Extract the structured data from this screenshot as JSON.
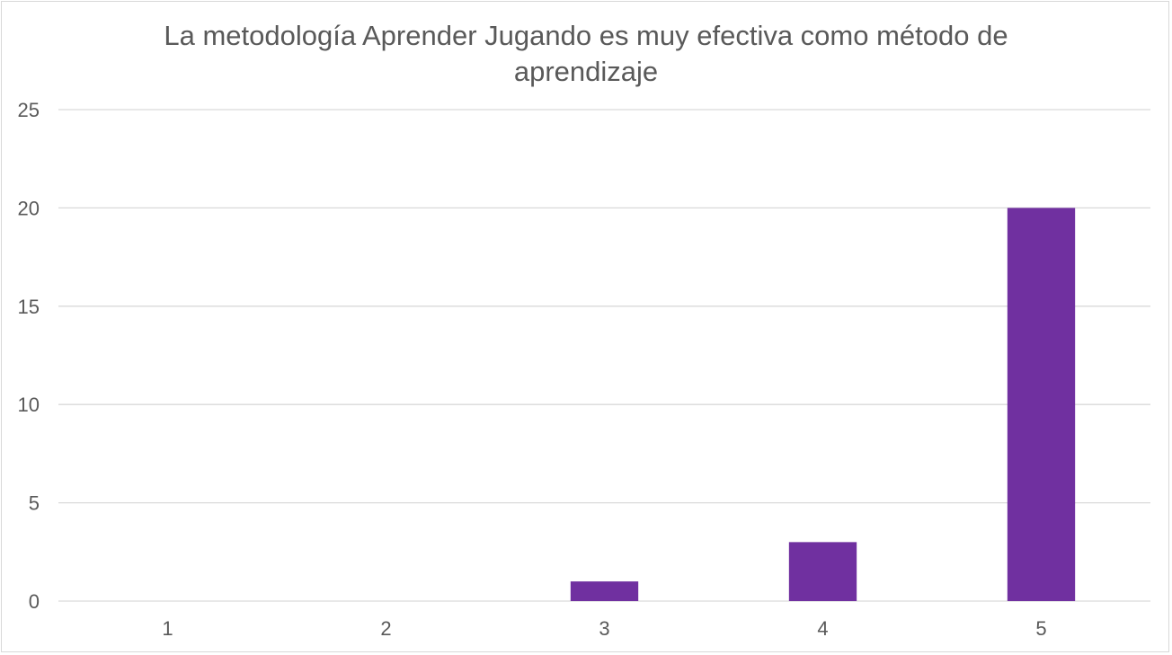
{
  "chart_data": {
    "type": "bar",
    "title": "La metodología Aprender Jugando es muy efectiva como método de aprendizaje",
    "categories": [
      "1",
      "2",
      "3",
      "4",
      "5"
    ],
    "values": [
      0,
      0,
      1,
      3,
      20
    ],
    "xlabel": "",
    "ylabel": "",
    "ylim": [
      0,
      25
    ],
    "yticks": [
      0,
      5,
      10,
      15,
      20,
      25
    ],
    "grid": true,
    "legend": "none",
    "bar_color": "#7030a0",
    "grid_color": "#d9d9d9",
    "text_color": "#595959"
  }
}
